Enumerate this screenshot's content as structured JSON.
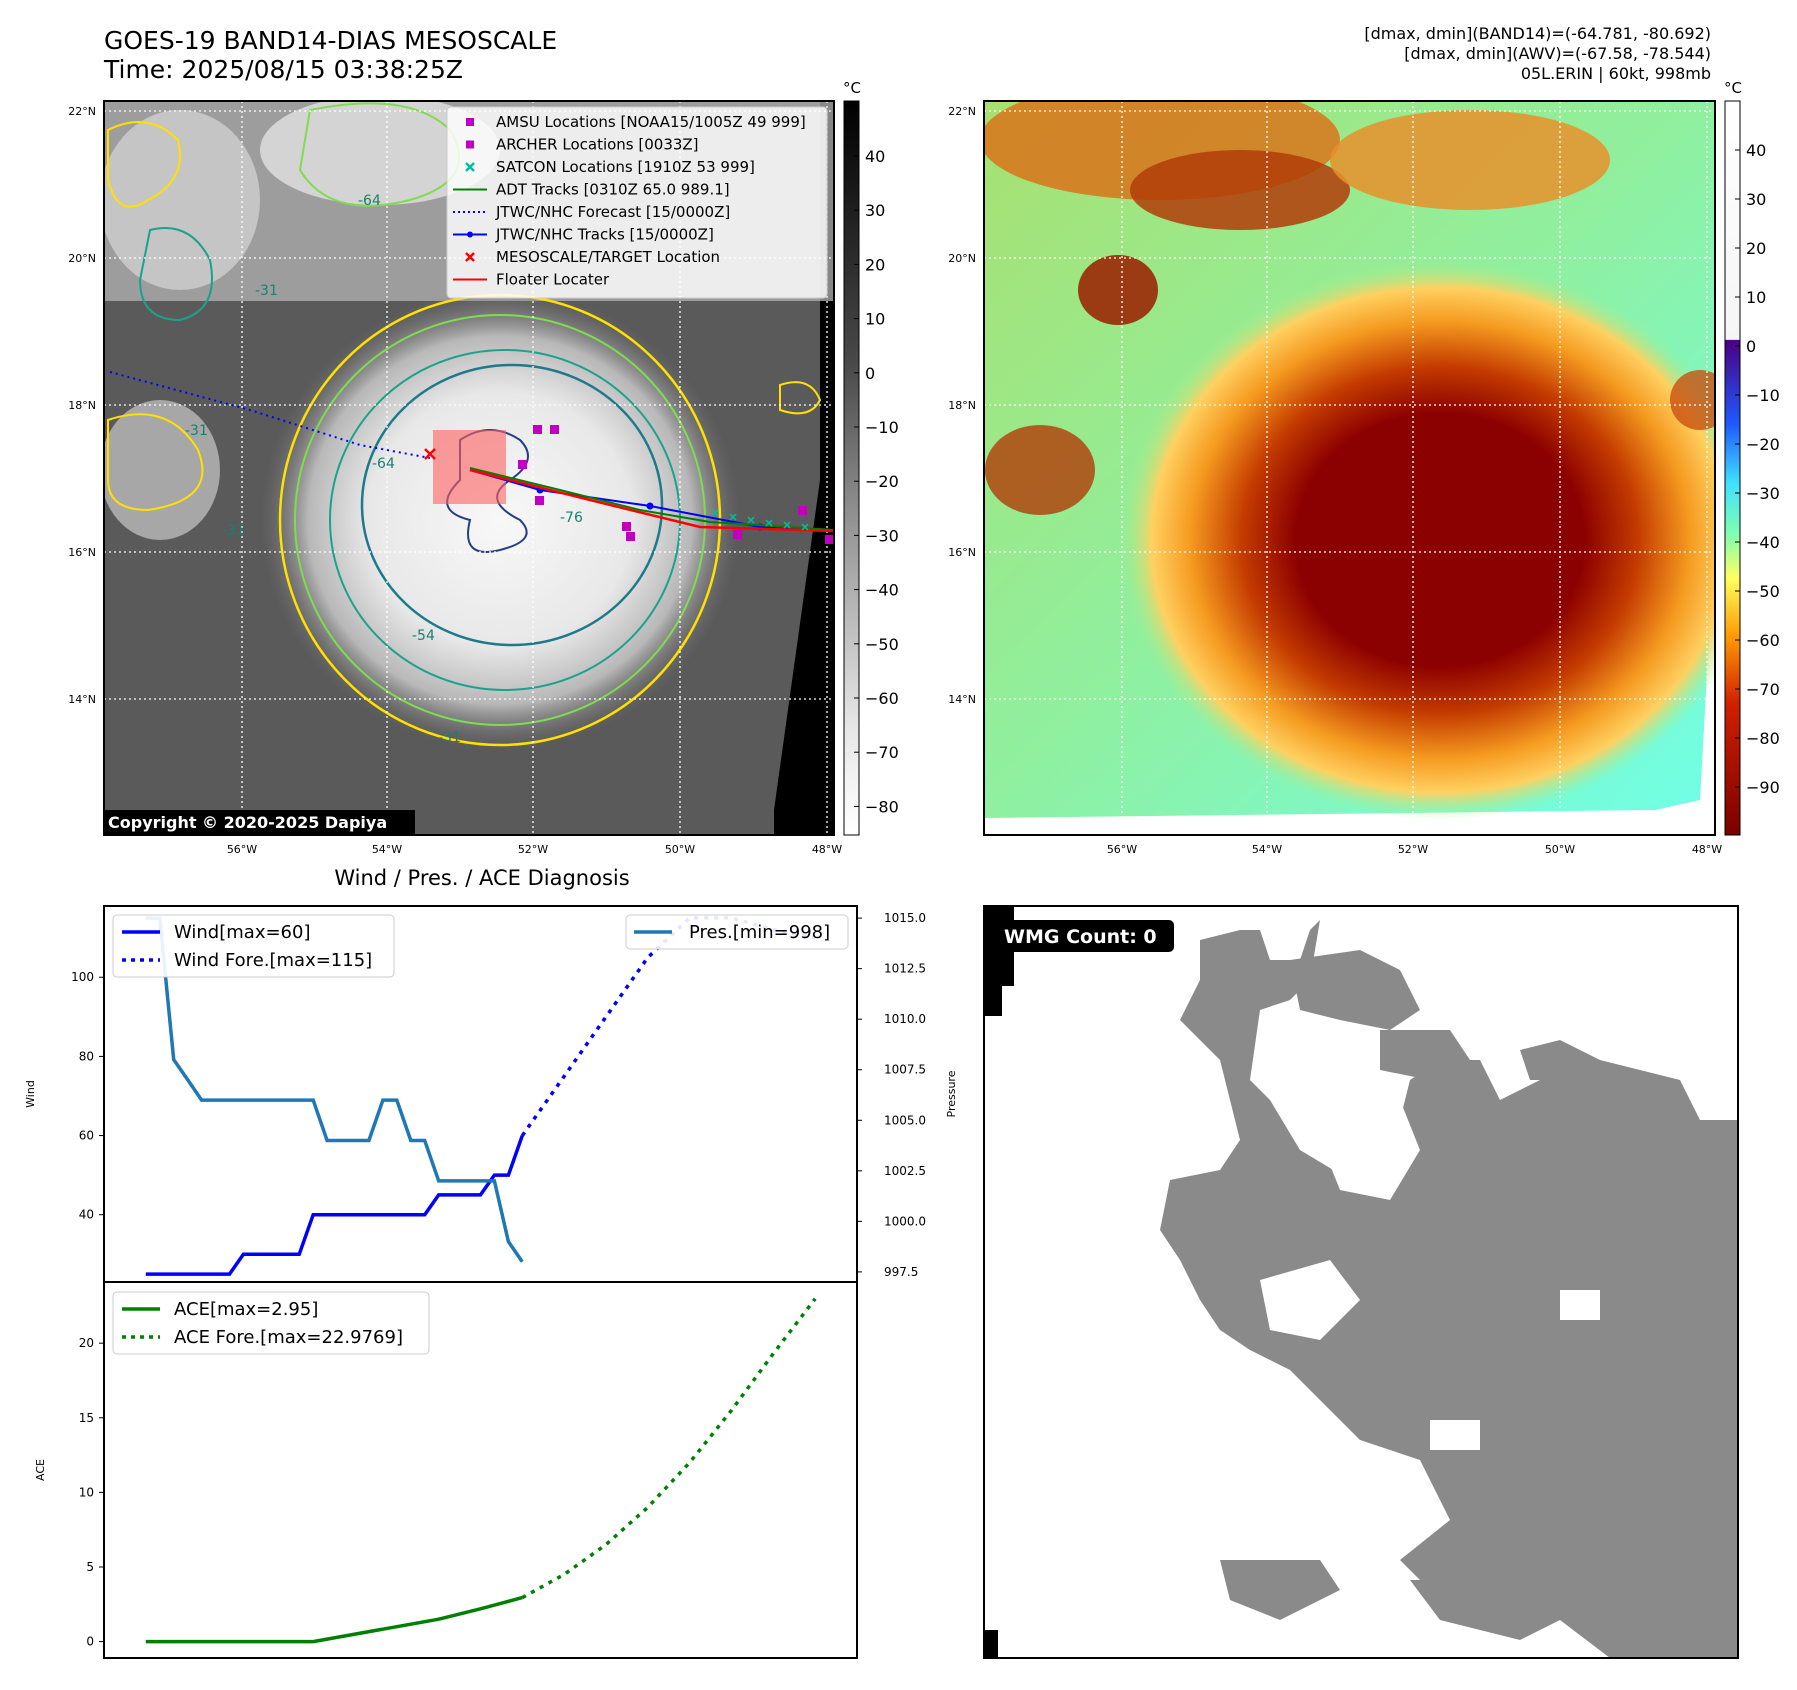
{
  "header": {
    "title_line1": "GOES-19 BAND14-DIAS MESOSCALE",
    "title_line2": "Time: 2025/08/15 03:38:25Z",
    "info_line1": "[dmax, dmin](BAND14)=(-64.781, -80.692)",
    "info_line2": "[dmax, dmin](AWV)=(-67.58, -78.544)",
    "info_line3": "05L.ERIN | 60kt, 998mb"
  },
  "map_axes": {
    "lat_ticks": [
      "22°N",
      "20°N",
      "18°N",
      "16°N",
      "14°N"
    ],
    "lon_ticks": [
      "56°W",
      "54°W",
      "52°W",
      "50°W",
      "48°W"
    ]
  },
  "ir_panel": {
    "copyright": "Copyright © 2020-2025 Dapiya",
    "contour_labels": [
      "-64",
      "-31",
      "-64",
      "-76",
      "-54",
      "-31",
      "-31",
      "-31"
    ],
    "colorbar": {
      "unit": "°C",
      "ticks": [
        "40",
        "30",
        "20",
        "10",
        "0",
        "−10",
        "−20",
        "−30",
        "−40",
        "−50",
        "−60",
        "−70",
        "−80"
      ]
    },
    "legend": [
      {
        "label": "AMSU Locations [NOAA15/1005Z 49 999]",
        "color": "#c000c0",
        "marker": "square"
      },
      {
        "label": "ARCHER Locations [0033Z]",
        "color": "#c000c0",
        "marker": "square"
      },
      {
        "label": "SATCON Locations [1910Z 53 999]",
        "color": "#00bfa0",
        "marker": "x"
      },
      {
        "label": "ADT Tracks [0310Z 65.0 989.1]",
        "color": "#008000",
        "marker": "line"
      },
      {
        "label": "JTWC/NHC Forecast [15/0000Z]",
        "color": "#0000ff",
        "marker": "dotted"
      },
      {
        "label": "JTWC/NHC Tracks [15/0000Z]",
        "color": "#0000ff",
        "marker": "line-dot"
      },
      {
        "label": "MESOSCALE/TARGET Location",
        "color": "#ff0000",
        "marker": "x"
      },
      {
        "label": "Floater Locater",
        "color": "#ff0000",
        "marker": "line"
      }
    ]
  },
  "awv_panel": {
    "colorbar": {
      "unit": "°C",
      "ticks": [
        "40",
        "30",
        "20",
        "10",
        "0",
        "−10",
        "−20",
        "−30",
        "−40",
        "−50",
        "−60",
        "−70",
        "−80",
        "−90"
      ]
    }
  },
  "wmg_panel": {
    "badge": "WMG Count: 0"
  },
  "diagnosis": {
    "title": "Wind / Pres. / ACE Diagnosis",
    "wind_ylabel": "Wind",
    "pres_ylabel": "Pressure",
    "ace_ylabel": "ACE",
    "wind_ticks": [
      "100",
      "80",
      "60",
      "40"
    ],
    "pres_ticks": [
      "1015.0",
      "1012.5",
      "1010.0",
      "1007.5",
      "1005.0",
      "1002.5",
      "1000.0",
      "997.5"
    ],
    "ace_ticks": [
      "20",
      "15",
      "10",
      "5",
      "0"
    ],
    "legend_wind": "Wind[max=60]",
    "legend_wind_fore": "Wind Fore.[max=115]",
    "legend_pres": "Pres.[min=998]",
    "legend_ace": "ACE[max=2.95]",
    "legend_ace_fore": "ACE Fore.[max=22.9769]"
  },
  "chart_data": [
    {
      "type": "line",
      "title": "Wind / Pres. / ACE Diagnosis",
      "ylabel": "Wind",
      "ylim": [
        23,
        118
      ],
      "x": [
        0,
        1,
        2,
        3,
        4,
        5,
        6,
        7,
        8,
        9,
        10,
        11,
        12,
        13,
        14,
        15,
        16,
        17,
        18,
        19,
        20,
        21,
        22,
        23,
        24,
        25,
        26,
        27,
        28,
        29,
        30,
        31,
        32,
        33,
        34,
        35,
        36,
        37,
        38,
        39,
        40,
        41,
        42,
        43,
        44,
        45,
        46,
        47,
        48
      ],
      "series": [
        {
          "name": "Wind[max=60]",
          "axis": "left",
          "color": "#0000ff",
          "style": "solid",
          "x": [
            0,
            1,
            2,
            3,
            4,
            5,
            6,
            7,
            8,
            9,
            10,
            11,
            12,
            13,
            14,
            15,
            16,
            17,
            18,
            19,
            20,
            21,
            22,
            23,
            24,
            25,
            26,
            27
          ],
          "values": [
            25,
            25,
            25,
            25,
            25,
            25,
            25,
            30,
            30,
            30,
            30,
            30,
            40,
            40,
            40,
            40,
            40,
            40,
            40,
            40,
            40,
            45,
            45,
            45,
            45,
            50,
            50,
            60
          ]
        },
        {
          "name": "Wind Fore.[max=115]",
          "axis": "left",
          "color": "#0000ff",
          "style": "dotted",
          "x": [
            27,
            30,
            33,
            36,
            39,
            42,
            45,
            48
          ],
          "values": [
            60,
            75,
            90,
            105,
            115,
            115,
            112,
            110
          ]
        },
        {
          "name": "Pres.[min=998]",
          "axis": "right",
          "color": "#1f77b4",
          "style": "solid",
          "ylim": [
            997,
            1015.6
          ],
          "x": [
            0,
            1,
            2,
            3,
            4,
            5,
            6,
            7,
            8,
            9,
            10,
            11,
            12,
            13,
            14,
            15,
            16,
            17,
            18,
            19,
            20,
            21,
            22,
            23,
            24,
            25,
            26,
            27
          ],
          "values": [
            1015,
            1015,
            1008,
            1007,
            1006,
            1006,
            1006,
            1006,
            1006,
            1006,
            1006,
            1006,
            1006,
            1004,
            1004,
            1004,
            1004,
            1006,
            1006,
            1004,
            1004,
            1002,
            1002,
            1002,
            1002,
            1002,
            999,
            998
          ]
        }
      ]
    },
    {
      "type": "line",
      "ylabel": "ACE",
      "ylim": [
        -1.1,
        24.1
      ],
      "series": [
        {
          "name": "ACE[max=2.95]",
          "color": "#008000",
          "style": "solid",
          "x": [
            0,
            3,
            6,
            9,
            12,
            15,
            18,
            21,
            24,
            27
          ],
          "values": [
            0,
            0,
            0,
            0,
            0,
            0.5,
            1.0,
            1.5,
            2.2,
            2.95
          ]
        },
        {
          "name": "ACE Fore.[max=22.9769]",
          "color": "#008000",
          "style": "dotted",
          "x": [
            27,
            30,
            33,
            36,
            39,
            42,
            45,
            48
          ],
          "values": [
            2.95,
            4.5,
            6.5,
            9.0,
            12.0,
            15.5,
            19.3,
            22.98
          ]
        }
      ]
    }
  ]
}
